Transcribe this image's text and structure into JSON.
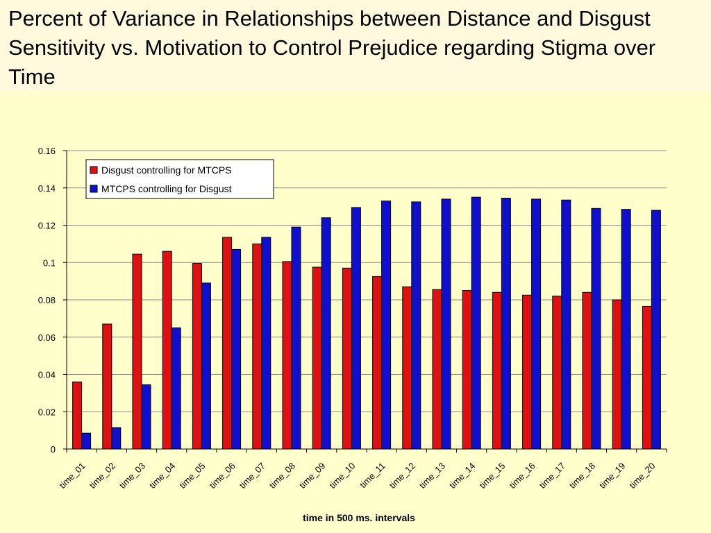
{
  "slide": {
    "title": "Percent of Variance in Relationships between Distance and Disgust Sensitivity vs. Motivation to Control Prejudice regarding Stigma over Time"
  },
  "chart_data": {
    "type": "bar",
    "xlabel": "time in 500 ms. intervals",
    "ylabel": "",
    "ylim": [
      0,
      0.16
    ],
    "yticks": [
      "0",
      "0.02",
      "0.04",
      "0.06",
      "0.08",
      "0.1",
      "0.12",
      "0.14",
      "0.16"
    ],
    "grid": true,
    "legend_position": "top-left",
    "categories": [
      "time_01",
      "time_02",
      "time_03",
      "time_04",
      "time_05",
      "time_06",
      "time_07",
      "time_08",
      "time_09",
      "time_10",
      "time_11",
      "time_12",
      "time_13",
      "time_14",
      "time_15",
      "time_16",
      "time_17",
      "time_18",
      "time_19",
      "time_20"
    ],
    "series": [
      {
        "name": "Disgust controlling for MTCPS",
        "color": "#dd1111",
        "values": [
          0.036,
          0.067,
          0.1045,
          0.106,
          0.0995,
          0.1135,
          0.11,
          0.1005,
          0.0975,
          0.097,
          0.0925,
          0.087,
          0.0855,
          0.085,
          0.084,
          0.0825,
          0.082,
          0.084,
          0.08,
          0.0765
        ]
      },
      {
        "name": "MTCPS controlling for Disgust",
        "color": "#0f0fcc",
        "values": [
          0.0085,
          0.0115,
          0.0345,
          0.065,
          0.089,
          0.107,
          0.1135,
          0.119,
          0.124,
          0.1295,
          0.133,
          0.1325,
          0.134,
          0.135,
          0.1345,
          0.134,
          0.1335,
          0.129,
          0.1285,
          0.128
        ]
      }
    ]
  }
}
